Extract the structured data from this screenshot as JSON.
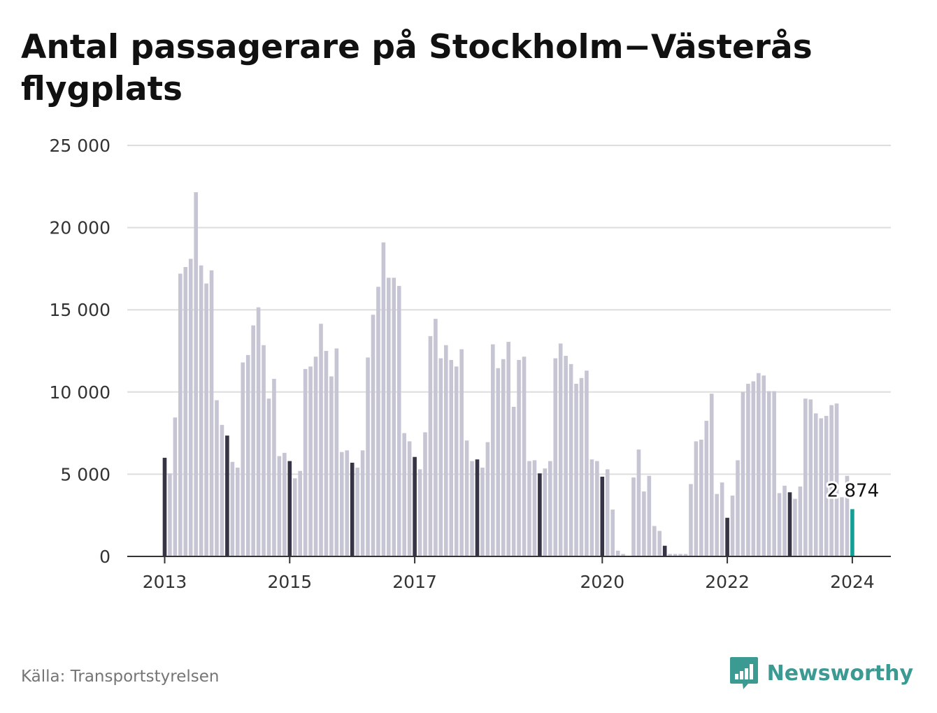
{
  "title": "Antal passagerare på Stockholm−Västerås flygplats",
  "source": "Källa: Transportstyrelsen",
  "brand": {
    "name": "Newsworthy",
    "icon": "newsworthy-logo-icon"
  },
  "colors": {
    "bar": "#c6c5d3",
    "january": "#363445",
    "latest": "#149e96",
    "grid": "#dddddd",
    "axis": "#333333",
    "brand": "#3b9a92"
  },
  "chart_data": {
    "type": "bar",
    "title": "Antal passagerare på Stockholm−Västerås flygplats",
    "xlabel": "",
    "ylabel": "",
    "ylim": [
      0,
      25000
    ],
    "yticks": [
      0,
      5000,
      10000,
      15000,
      20000,
      25000
    ],
    "ytick_labels": [
      "0",
      "5 000",
      "10 000",
      "15 000",
      "20 000",
      "25 000"
    ],
    "xtick_labels": [
      {
        "label": "2013",
        "index": 0
      },
      {
        "label": "2015",
        "index": 24
      },
      {
        "label": "2017",
        "index": 48
      },
      {
        "label": "2020",
        "index": 84
      },
      {
        "label": "2022",
        "index": 108
      },
      {
        "label": "2024",
        "index": 132
      }
    ],
    "grid": true,
    "legend": "none",
    "start": "2013-01",
    "frequency": "monthly",
    "highlight": "january bars dark, latest month teal",
    "values": [
      6000,
      5050,
      8450,
      17200,
      17600,
      18100,
      22150,
      17700,
      16600,
      17400,
      9500,
      8000,
      7350,
      5750,
      5400,
      11800,
      12250,
      14050,
      15150,
      12850,
      9600,
      10800,
      6100,
      6300,
      5800,
      4750,
      5200,
      11400,
      11550,
      12150,
      14150,
      12500,
      10950,
      12650,
      6350,
      6450,
      5700,
      5400,
      6450,
      12100,
      14700,
      16400,
      19100,
      16950,
      16950,
      16450,
      7500,
      7000,
      6050,
      5300,
      7550,
      13400,
      14450,
      12050,
      12850,
      11950,
      11550,
      12600,
      7050,
      5800,
      5900,
      5400,
      6950,
      12900,
      11450,
      12000,
      13050,
      9100,
      11950,
      12150,
      5800,
      5850,
      5050,
      5350,
      5800,
      12050,
      12950,
      12200,
      11700,
      10500,
      10850,
      11300,
      5900,
      5800,
      4850,
      5300,
      2850,
      350,
      150,
      0,
      4800,
      6500,
      3950,
      4900,
      1850,
      1550,
      650,
      150,
      150,
      150,
      150,
      4400,
      7000,
      7100,
      8250,
      9900,
      3800,
      4500,
      2350,
      3700,
      5850,
      10000,
      10500,
      10650,
      11150,
      11000,
      10050,
      10050,
      3850,
      4300,
      3900,
      3500,
      4250,
      9600,
      9550,
      8700,
      8400,
      8550,
      9200,
      9300,
      3600,
      4900,
      2874
    ],
    "annotations": [
      {
        "index": 132,
        "label": "2 874"
      }
    ]
  }
}
